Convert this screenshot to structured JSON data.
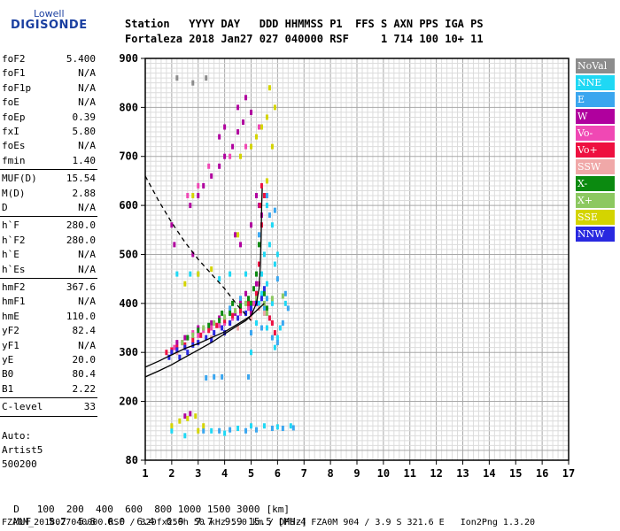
{
  "logo": {
    "line1": "Lowell",
    "line2": "DIGISONDE"
  },
  "header": {
    "line1": "Station   YYYY DAY   DDD HHMMSS P1  FFS S AXN PPS IGA PS",
    "line2": "Fortaleza 2018 Jan27 027 040000 RSF     1 714 100 10+ 11"
  },
  "params": {
    "group1": [
      {
        "name": "foF2",
        "value": "5.400"
      },
      {
        "name": "foF1",
        "value": "N/A"
      },
      {
        "name": "foF1p",
        "value": "N/A"
      },
      {
        "name": "foE",
        "value": "N/A"
      },
      {
        "name": "foEp",
        "value": "0.39"
      },
      {
        "name": "fxI",
        "value": "5.80"
      },
      {
        "name": "foEs",
        "value": "N/A"
      },
      {
        "name": "fmin",
        "value": "1.40"
      }
    ],
    "group2": [
      {
        "name": "MUF(D)",
        "value": "15.54"
      },
      {
        "name": "M(D)",
        "value": "2.88"
      },
      {
        "name": "D",
        "value": "N/A"
      }
    ],
    "group3": [
      {
        "name": "h`F",
        "value": "280.0"
      },
      {
        "name": "h`F2",
        "value": "280.0"
      },
      {
        "name": "h`E",
        "value": "N/A"
      },
      {
        "name": "h`Es",
        "value": "N/A"
      }
    ],
    "group4": [
      {
        "name": "hmF2",
        "value": "367.6"
      },
      {
        "name": "hmF1",
        "value": "N/A"
      },
      {
        "name": "hmE",
        "value": "110.0"
      },
      {
        "name": "yF2",
        "value": "82.4"
      },
      {
        "name": "yF1",
        "value": "N/A"
      },
      {
        "name": "yE",
        "value": "20.0"
      },
      {
        "name": "B0",
        "value": "80.4"
      },
      {
        "name": "B1",
        "value": "2.22"
      }
    ],
    "group5": [
      {
        "name": "C-level",
        "value": "33"
      }
    ]
  },
  "autoscale": {
    "line1": "Auto:",
    "line2": "Artist5",
    "line3": "500200"
  },
  "legend": [
    {
      "label": "NoVal",
      "color": "#8c8c8c"
    },
    {
      "label": "NNE",
      "color": "#1fd8f4"
    },
    {
      "label": "E",
      "color": "#3aa6ef"
    },
    {
      "label": "W",
      "color": "#b0009e"
    },
    {
      "label": "Vo-",
      "color": "#f048b4"
    },
    {
      "label": "Vo+",
      "color": "#ee1040"
    },
    {
      "label": "SSW",
      "color": "#f0a8a8"
    },
    {
      "label": "X-",
      "color": "#0b8a10"
    },
    {
      "label": "X+",
      "color": "#8cc860"
    },
    {
      "label": "SSE",
      "color": "#d4d400"
    },
    {
      "label": "NNW",
      "color": "#2828e0"
    }
  ],
  "mufTable": {
    "dLabel": "D",
    "distances": [
      "100",
      "200",
      "400",
      "600",
      "800",
      "1000",
      "1500",
      "3000"
    ],
    "dUnit": "[km]",
    "mufLabel": "MUF",
    "mufs": [
      "5.7",
      "5.8",
      "6.0",
      "6.4",
      "6.9",
      "7.7",
      "9.9",
      "15.5"
    ],
    "mufUnit": "[MHz]"
  },
  "footer": "FZA0M_2018027040000.RSF / 320fx256h 50 kHz 5.0 km / DPS-4 FZA0M 904 / 3.9 S 321.6 E   Ion2Png 1.3.20",
  "chart_data": {
    "type": "scatter",
    "xlim": [
      1,
      17
    ],
    "ylim": [
      80,
      900
    ],
    "xticks": [
      1,
      2,
      3,
      4,
      5,
      6,
      7,
      8,
      9,
      10,
      11,
      12,
      13,
      14,
      15,
      16,
      17
    ],
    "yticks": [
      80,
      200,
      300,
      400,
      500,
      600,
      700,
      800,
      900
    ],
    "grid": true,
    "legend_placement": "right",
    "series": [
      {
        "name": "NoVal",
        "points": [
          [
            2.8,
            850
          ],
          [
            3.3,
            860
          ],
          [
            2.2,
            860
          ]
        ]
      },
      {
        "name": "NNE",
        "points": [
          [
            5.3,
            400
          ],
          [
            5.4,
            420
          ],
          [
            5.5,
            380
          ],
          [
            5.6,
            350
          ],
          [
            5.7,
            370
          ],
          [
            5.2,
            360
          ],
          [
            5.0,
            300
          ],
          [
            5.8,
            400
          ],
          [
            6.0,
            330
          ],
          [
            5.9,
            310
          ],
          [
            6.1,
            350
          ],
          [
            6.3,
            400
          ],
          [
            5.6,
            440
          ],
          [
            5.4,
            460
          ],
          [
            5.5,
            500
          ],
          [
            5.7,
            520
          ],
          [
            5.8,
            560
          ],
          [
            5.6,
            600
          ],
          [
            5.9,
            480
          ],
          [
            6.0,
            500
          ],
          [
            5.2,
            420
          ],
          [
            4.8,
            460
          ],
          [
            4.2,
            460
          ],
          [
            3.8,
            450
          ],
          [
            3.0,
            460
          ],
          [
            2.7,
            460
          ],
          [
            2.2,
            460
          ],
          [
            2.5,
            130
          ],
          [
            3.5,
            140
          ],
          [
            4.0,
            135
          ],
          [
            4.5,
            145
          ],
          [
            5.0,
            150
          ],
          [
            5.5,
            150
          ],
          [
            6.0,
            148
          ],
          [
            6.5,
            150
          ],
          [
            2.0,
            140
          ]
        ]
      },
      {
        "name": "E",
        "points": [
          [
            5.5,
            390
          ],
          [
            5.6,
            410
          ],
          [
            5.8,
            330
          ],
          [
            6.0,
            320
          ],
          [
            6.2,
            360
          ],
          [
            6.4,
            390
          ],
          [
            5.4,
            350
          ],
          [
            5.0,
            340
          ],
          [
            4.8,
            380
          ],
          [
            5.3,
            540
          ],
          [
            5.7,
            580
          ],
          [
            5.9,
            590
          ],
          [
            5.6,
            620
          ],
          [
            6.0,
            450
          ],
          [
            6.3,
            420
          ],
          [
            4.6,
            410
          ],
          [
            4.2,
            390
          ],
          [
            3.6,
            250
          ],
          [
            3.3,
            248
          ],
          [
            3.9,
            250
          ],
          [
            4.9,
            250
          ],
          [
            3.2,
            140
          ],
          [
            3.8,
            140
          ],
          [
            4.2,
            142
          ],
          [
            4.8,
            140
          ],
          [
            5.2,
            142
          ],
          [
            5.8,
            145
          ],
          [
            6.2,
            145
          ],
          [
            6.6,
            146
          ]
        ]
      },
      {
        "name": "W",
        "points": [
          [
            2.7,
            600
          ],
          [
            3.0,
            620
          ],
          [
            3.2,
            640
          ],
          [
            3.5,
            660
          ],
          [
            3.8,
            680
          ],
          [
            4.0,
            700
          ],
          [
            4.3,
            720
          ],
          [
            4.5,
            750
          ],
          [
            4.7,
            770
          ],
          [
            5.0,
            790
          ],
          [
            3.8,
            740
          ],
          [
            4.0,
            760
          ],
          [
            4.5,
            800
          ],
          [
            4.8,
            820
          ],
          [
            2.0,
            560
          ],
          [
            2.1,
            520
          ],
          [
            2.8,
            500
          ],
          [
            4.4,
            540
          ],
          [
            4.6,
            520
          ],
          [
            5.0,
            560
          ],
          [
            5.2,
            620
          ],
          [
            5.3,
            600
          ],
          [
            5.4,
            580
          ],
          [
            4.2,
            360
          ],
          [
            4.4,
            380
          ],
          [
            3.8,
            370
          ],
          [
            3.5,
            360
          ],
          [
            3.0,
            350
          ],
          [
            2.5,
            330
          ],
          [
            2.2,
            320
          ],
          [
            4.6,
            400
          ],
          [
            4.8,
            420
          ],
          [
            5.0,
            380
          ],
          [
            5.2,
            440
          ],
          [
            2.5,
            170
          ],
          [
            2.7,
            175
          ]
        ]
      },
      {
        "name": "Vo-",
        "points": [
          [
            2.1,
            310
          ],
          [
            2.4,
            320
          ],
          [
            2.6,
            330
          ],
          [
            2.8,
            340
          ],
          [
            3.0,
            335
          ],
          [
            3.2,
            345
          ],
          [
            3.5,
            350
          ],
          [
            3.8,
            355
          ],
          [
            4.0,
            360
          ],
          [
            4.3,
            370
          ],
          [
            4.6,
            380
          ],
          [
            4.9,
            390
          ],
          [
            5.1,
            400
          ],
          [
            5.3,
            440
          ],
          [
            2.6,
            620
          ],
          [
            3.0,
            640
          ],
          [
            3.4,
            680
          ],
          [
            4.2,
            700
          ],
          [
            4.8,
            720
          ],
          [
            5.3,
            760
          ]
        ]
      },
      {
        "name": "Vo+",
        "points": [
          [
            1.8,
            300
          ],
          [
            2.0,
            305
          ],
          [
            2.2,
            310
          ],
          [
            2.5,
            315
          ],
          [
            2.8,
            325
          ],
          [
            3.1,
            335
          ],
          [
            3.4,
            345
          ],
          [
            3.7,
            355
          ],
          [
            4.0,
            365
          ],
          [
            4.3,
            375
          ],
          [
            4.6,
            385
          ],
          [
            4.9,
            400
          ],
          [
            5.2,
            420
          ],
          [
            5.3,
            480
          ],
          [
            5.4,
            560
          ],
          [
            5.35,
            600
          ],
          [
            5.4,
            640
          ],
          [
            5.5,
            620
          ],
          [
            5.7,
            370
          ],
          [
            5.8,
            360
          ],
          [
            5.9,
            340
          ]
        ]
      },
      {
        "name": "SSW",
        "points": [
          [
            2.2,
            300
          ],
          [
            2.5,
            310
          ],
          [
            3.0,
            320
          ],
          [
            3.5,
            330
          ],
          [
            4.0,
            340
          ],
          [
            4.5,
            350
          ],
          [
            5.0,
            370
          ],
          [
            5.3,
            390
          ],
          [
            5.5,
            380
          ]
        ]
      },
      {
        "name": "X-",
        "points": [
          [
            2.6,
            330
          ],
          [
            3.0,
            345
          ],
          [
            3.4,
            355
          ],
          [
            3.8,
            365
          ],
          [
            4.2,
            380
          ],
          [
            4.6,
            395
          ],
          [
            4.9,
            410
          ],
          [
            5.1,
            430
          ],
          [
            5.2,
            460
          ],
          [
            5.3,
            520
          ],
          [
            5.0,
            400
          ],
          [
            5.5,
            420
          ],
          [
            5.6,
            390
          ],
          [
            4.3,
            400
          ],
          [
            3.9,
            380
          ]
        ]
      },
      {
        "name": "X+",
        "points": [
          [
            2.4,
            320
          ],
          [
            2.8,
            335
          ],
          [
            3.2,
            350
          ],
          [
            3.6,
            360
          ],
          [
            4.0,
            372
          ],
          [
            4.4,
            385
          ],
          [
            4.8,
            400
          ],
          [
            5.2,
            410
          ],
          [
            5.5,
            400
          ],
          [
            5.6,
            380
          ],
          [
            5.8,
            410
          ],
          [
            6.2,
            415
          ]
        ]
      },
      {
        "name": "SSE",
        "points": [
          [
            2.0,
            150
          ],
          [
            2.3,
            160
          ],
          [
            2.6,
            165
          ],
          [
            2.9,
            170
          ],
          [
            3.2,
            150
          ],
          [
            3.0,
            140
          ],
          [
            4.6,
            700
          ],
          [
            5.0,
            720
          ],
          [
            5.2,
            740
          ],
          [
            5.4,
            760
          ],
          [
            5.6,
            780
          ],
          [
            5.8,
            720
          ],
          [
            5.9,
            800
          ],
          [
            5.7,
            840
          ],
          [
            4.5,
            540
          ],
          [
            5.6,
            650
          ],
          [
            2.8,
            620
          ],
          [
            3.0,
            460
          ],
          [
            3.5,
            470
          ],
          [
            2.5,
            440
          ]
        ]
      },
      {
        "name": "NNW",
        "points": [
          [
            2.0,
            300
          ],
          [
            2.2,
            305
          ],
          [
            2.5,
            310
          ],
          [
            2.8,
            315
          ],
          [
            3.0,
            320
          ],
          [
            3.3,
            330
          ],
          [
            3.6,
            340
          ],
          [
            3.9,
            350
          ],
          [
            4.2,
            360
          ],
          [
            4.5,
            370
          ],
          [
            4.8,
            380
          ],
          [
            5.0,
            390
          ],
          [
            5.2,
            400
          ],
          [
            5.4,
            410
          ],
          [
            5.5,
            430
          ],
          [
            4.0,
            340
          ],
          [
            3.5,
            325
          ],
          [
            2.6,
            300
          ],
          [
            2.3,
            290
          ],
          [
            1.9,
            290
          ]
        ]
      }
    ],
    "curves": [
      {
        "name": "dashed-profile",
        "style": "dashed",
        "points": [
          [
            1.0,
            660
          ],
          [
            1.5,
            610
          ],
          [
            2.0,
            565
          ],
          [
            2.5,
            525
          ],
          [
            3.0,
            490
          ],
          [
            3.5,
            460
          ],
          [
            4.0,
            430
          ],
          [
            4.5,
            395
          ],
          [
            5.0,
            365
          ]
        ]
      },
      {
        "name": "trace-o",
        "style": "solid",
        "points": [
          [
            1.0,
            250
          ],
          [
            1.5,
            262
          ],
          [
            2.0,
            275
          ],
          [
            2.5,
            290
          ],
          [
            3.0,
            305
          ],
          [
            3.5,
            320
          ],
          [
            4.0,
            338
          ],
          [
            4.5,
            355
          ],
          [
            4.8,
            365
          ],
          [
            5.0,
            375
          ],
          [
            5.2,
            400
          ],
          [
            5.3,
            430
          ],
          [
            5.35,
            480
          ],
          [
            5.38,
            540
          ],
          [
            5.4,
            600
          ],
          [
            5.42,
            635
          ]
        ]
      },
      {
        "name": "trace-x",
        "style": "solid",
        "points": [
          [
            1.0,
            270
          ],
          [
            1.5,
            282
          ],
          [
            2.0,
            295
          ],
          [
            2.5,
            308
          ],
          [
            3.0,
            318
          ],
          [
            3.5,
            330
          ],
          [
            4.0,
            342
          ],
          [
            4.5,
            358
          ],
          [
            5.0,
            375
          ],
          [
            5.2,
            385
          ],
          [
            5.4,
            395
          ],
          [
            5.5,
            400
          ]
        ]
      }
    ]
  }
}
